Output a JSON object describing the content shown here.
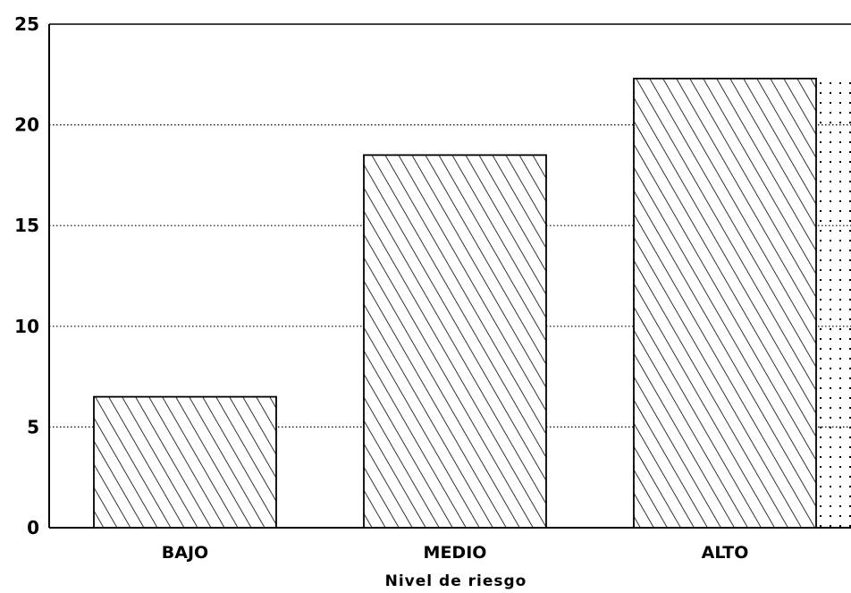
{
  "chart_data": {
    "type": "bar",
    "title": "",
    "xlabel": "Nivel de riesgo",
    "ylabel": "",
    "categories": [
      "BAJO",
      "MEDIO",
      "ALTO"
    ],
    "values": [
      6.5,
      18.5,
      22.3
    ],
    "ylim": [
      0,
      25
    ],
    "yticks": [
      0,
      5,
      10,
      15,
      20,
      25
    ],
    "grid": "horizontal-dotted",
    "bar_fill": "diagonal-hatch",
    "colors": {
      "ink": "#000000",
      "background": "#ffffff"
    }
  }
}
